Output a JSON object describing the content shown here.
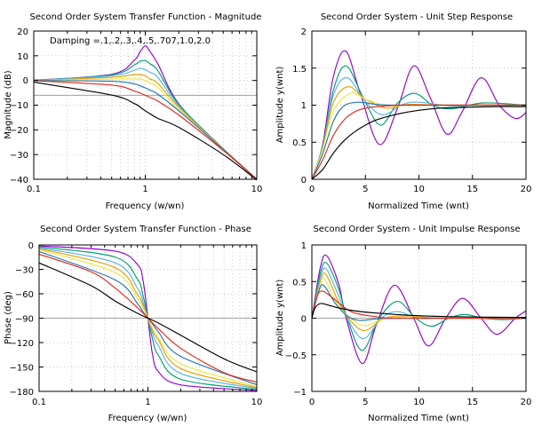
{
  "chart_data": [
    {
      "type": "line",
      "id": "magnitude",
      "title": "Second Order System Transfer Function - Magnitude",
      "xlabel": "Frequency (w/wn)",
      "ylabel": "Magnitude (dB)",
      "x_scale": "log",
      "xlim": [
        0.1,
        10
      ],
      "ylim": [
        -40,
        20
      ],
      "x_ticks": [
        0.1,
        1,
        10
      ],
      "x_tick_labels": [
        "0.1",
        "1",
        "10"
      ],
      "y_ticks": [
        20,
        10,
        0,
        -10,
        -20,
        -30,
        -40
      ],
      "y_tick_labels": [
        "20",
        "10",
        "0",
        "−10",
        "−20",
        "−30",
        "−40"
      ],
      "grid": true,
      "annotation": "Damping =.1,.2,.3,.4,.5,.707,1.0,2.0",
      "reference_line": {
        "y": -6
      },
      "series": [
        {
          "zeta": 0.1,
          "color": "#9400d3",
          "x": [
            0.1,
            0.5,
            0.8,
            0.9,
            1.0,
            1.1,
            1.3,
            2,
            5,
            10
          ],
          "y": [
            0.09,
            2.5,
            8.3,
            11.7,
            14.0,
            11.8,
            6.6,
            -9.5,
            -27.6,
            -39.9
          ]
        },
        {
          "zeta": 0.2,
          "color": "#009e73",
          "x": [
            0.1,
            0.5,
            0.8,
            0.9,
            1.0,
            1.1,
            1.3,
            2,
            5,
            10
          ],
          "y": [
            0.06,
            2.3,
            6.3,
            7.8,
            8.0,
            6.8,
            3.9,
            -9.7,
            -27.6,
            -39.9
          ]
        },
        {
          "zeta": 0.3,
          "color": "#56b4e9",
          "x": [
            0.1,
            0.5,
            0.8,
            0.9,
            1.0,
            1.1,
            1.3,
            2,
            5,
            10
          ],
          "y": [
            0.02,
            1.9,
            4.2,
            4.9,
            4.4,
            3.3,
            1.2,
            -10.3,
            -27.7,
            -39.9
          ]
        },
        {
          "zeta": 0.4,
          "color": "#e69f00",
          "x": [
            0.1,
            0.5,
            0.8,
            0.9,
            1.0,
            1.1,
            1.3,
            2,
            5,
            10
          ],
          "y": [
            -0.03,
            1.3,
            2.4,
            2.3,
            1.9,
            0.6,
            -1.2,
            -10.9,
            -27.7,
            -39.9
          ]
        },
        {
          "zeta": 0.5,
          "color": "#f0e442",
          "x": [
            0.1,
            0.5,
            0.8,
            0.9,
            1.0,
            1.1,
            1.3,
            2,
            5,
            10
          ],
          "y": [
            -0.04,
            0.6,
            0.6,
            0.6,
            0.0,
            -1.0,
            -2.9,
            -11.8,
            -27.8,
            -40.0
          ]
        },
        {
          "zeta": 0.707,
          "color": "#1f77b4",
          "x": [
            0.1,
            0.5,
            0.8,
            0.9,
            1.0,
            1.1,
            1.3,
            2,
            5,
            10
          ],
          "y": [
            0.0,
            -0.3,
            -1.4,
            -2.2,
            -3.0,
            -3.9,
            -5.6,
            -12.3,
            -27.9,
            -40.0
          ]
        },
        {
          "zeta": 1.0,
          "color": "#e3261b",
          "x": [
            0.1,
            0.5,
            0.8,
            0.9,
            1.0,
            1.1,
            1.3,
            2,
            5,
            10
          ],
          "y": [
            -0.09,
            -1.9,
            -4.3,
            -5.1,
            -6.0,
            -6.8,
            -8.4,
            -14.0,
            -28.3,
            -40.1
          ]
        },
        {
          "zeta": 2.0,
          "color": "#000000",
          "x": [
            0.1,
            0.5,
            0.8,
            0.9,
            1.0,
            1.1,
            1.3,
            2,
            5,
            10
          ],
          "y": [
            -0.7,
            -5.9,
            -9.4,
            -10.8,
            -12.3,
            -13.4,
            -15.4,
            -19.0,
            -30.0,
            -40.3
          ]
        }
      ]
    },
    {
      "type": "line",
      "id": "step",
      "title": "Second Order System - Unit Step Response",
      "xlabel": "Normalized Time (wnt)",
      "ylabel": "Amplitude y(wnt)",
      "xlim": [
        0,
        20
      ],
      "ylim": [
        0,
        2
      ],
      "x_ticks": [
        0,
        5,
        10,
        15,
        20
      ],
      "x_tick_labels": [
        "0",
        "5",
        "10",
        "15",
        "20"
      ],
      "y_ticks": [
        0,
        0.5,
        1,
        1.5,
        2
      ],
      "y_tick_labels": [
        "0",
        "0.5",
        "1",
        "1.5",
        "2"
      ],
      "grid": true,
      "series": [
        {
          "zeta": 0.1,
          "color": "#9400d3",
          "x": [
            0,
            1,
            2,
            3.16,
            4.5,
            6.3,
            8,
            9.5,
            11,
            12.6,
            14,
            15.8,
            17.5,
            19,
            20
          ],
          "y": [
            0,
            0.46,
            1.38,
            1.73,
            1.17,
            0.47,
            0.96,
            1.53,
            1.12,
            0.61,
            0.9,
            1.37,
            1.0,
            0.82,
            0.9
          ]
        },
        {
          "zeta": 0.2,
          "color": "#009e73",
          "x": [
            0,
            1,
            2,
            3.2,
            4.8,
            6.4,
            8,
            9.6,
            11.3,
            13,
            16,
            20
          ],
          "y": [
            0,
            0.44,
            1.2,
            1.53,
            1.1,
            0.73,
            1.03,
            1.16,
            1.0,
            0.95,
            1.03,
            1.0
          ]
        },
        {
          "zeta": 0.3,
          "color": "#56b4e9",
          "x": [
            0,
            1,
            2,
            3.3,
            5,
            6.6,
            8.5,
            10,
            13,
            16,
            20
          ],
          "y": [
            0,
            0.42,
            1.13,
            1.37,
            1.05,
            0.87,
            1.01,
            1.04,
            0.99,
            1.0,
            1.0
          ]
        },
        {
          "zeta": 0.4,
          "color": "#e69f00",
          "x": [
            0,
            1,
            2,
            3.4,
            5,
            7,
            9,
            12,
            16,
            20
          ],
          "y": [
            0,
            0.41,
            1.03,
            1.25,
            1.08,
            0.96,
            1.01,
            1.0,
            1.0,
            1.0
          ]
        },
        {
          "zeta": 0.5,
          "color": "#f0e442",
          "x": [
            0,
            1,
            2,
            3.6,
            5,
            7,
            9,
            12,
            16,
            20
          ],
          "y": [
            0,
            0.4,
            0.92,
            1.16,
            1.08,
            0.99,
            1.0,
            1.0,
            1.0,
            1.0
          ]
        },
        {
          "zeta": 0.707,
          "color": "#1f77b4",
          "x": [
            0,
            1,
            2,
            3,
            4.4,
            6,
            8,
            12,
            20
          ],
          "y": [
            0,
            0.34,
            0.78,
            0.99,
            1.04,
            1.01,
            1.0,
            1.0,
            1.0
          ]
        },
        {
          "zeta": 1.0,
          "color": "#e3261b",
          "x": [
            0,
            1,
            2,
            3,
            4,
            5,
            6,
            8,
            10,
            14,
            20
          ],
          "y": [
            0,
            0.26,
            0.59,
            0.8,
            0.91,
            0.96,
            0.98,
            1.0,
            1.0,
            1.0,
            1.0
          ]
        },
        {
          "zeta": 2.0,
          "color": "#000000",
          "x": [
            0,
            1,
            2,
            3,
            4,
            5,
            6,
            8,
            10,
            12,
            14,
            17,
            20
          ],
          "y": [
            0,
            0.13,
            0.35,
            0.52,
            0.64,
            0.73,
            0.8,
            0.88,
            0.93,
            0.96,
            0.97,
            0.98,
            0.98
          ]
        }
      ]
    },
    {
      "type": "line",
      "id": "phase",
      "title": "Second Order System Transfer Function - Phase",
      "xlabel": "Frequency (w/wn)",
      "ylabel": "Phase (deg)",
      "x_scale": "log",
      "xlim": [
        0.1,
        10
      ],
      "ylim": [
        -180,
        0
      ],
      "x_ticks": [
        0.1,
        1,
        10
      ],
      "x_tick_labels": [
        "0.1",
        "1",
        "10"
      ],
      "y_ticks": [
        0,
        -30,
        -60,
        -90,
        -120,
        -150,
        -180
      ],
      "y_tick_labels": [
        "0",
        "−30",
        "−60",
        "−90",
        "−120",
        "−150",
        "−180"
      ],
      "grid": true,
      "reference_line": {
        "y": -90
      },
      "series": [
        {
          "zeta": 0.1,
          "color": "#9400d3",
          "x": [
            0.1,
            0.5,
            0.8,
            0.9,
            1.0,
            1.1,
            1.25,
            2,
            10
          ],
          "y": [
            -1.2,
            -7.6,
            -24,
            -43,
            -90,
            -134,
            -156,
            -172,
            -178.8
          ]
        },
        {
          "zeta": 0.2,
          "color": "#009e73",
          "x": [
            0.1,
            0.5,
            0.8,
            0.9,
            1.0,
            1.1,
            1.25,
            2,
            10
          ],
          "y": [
            -2.3,
            -15,
            -42,
            -62,
            -90,
            -115,
            -136,
            -165,
            -177.7
          ]
        },
        {
          "zeta": 0.3,
          "color": "#56b4e9",
          "x": [
            0.1,
            0.5,
            0.8,
            0.9,
            1.0,
            1.1,
            1.25,
            2,
            10
          ],
          "y": [
            -3.5,
            -22,
            -53,
            -70,
            -90,
            -108,
            -124,
            -158,
            -176.5
          ]
        },
        {
          "zeta": 0.4,
          "color": "#e69f00",
          "x": [
            0.1,
            0.5,
            0.8,
            0.9,
            1.0,
            1.1,
            1.25,
            2,
            10
          ],
          "y": [
            -4.6,
            -28,
            -61,
            -74,
            -90,
            -105,
            -117,
            -152,
            -175.4
          ]
        },
        {
          "zeta": 0.5,
          "color": "#f0e442",
          "x": [
            0.1,
            0.5,
            0.8,
            0.9,
            1.0,
            1.1,
            1.25,
            2,
            10
          ],
          "y": [
            -5.8,
            -34,
            -66,
            -77,
            -90,
            -102,
            -114,
            -146,
            -174.2
          ]
        },
        {
          "zeta": 0.707,
          "color": "#1f77b4",
          "x": [
            0.1,
            0.5,
            0.8,
            0.9,
            1.0,
            1.1,
            1.25,
            2,
            10
          ],
          "y": [
            -8.1,
            -43,
            -72,
            -82,
            -90,
            -97,
            -107,
            -137,
            -171.8
          ]
        },
        {
          "zeta": 1.0,
          "color": "#e3261b",
          "x": [
            0.1,
            0.3,
            0.5,
            0.8,
            1.0,
            1.25,
            2,
            5,
            10
          ],
          "y": [
            -11.4,
            -33,
            -53,
            -77,
            -90,
            -103,
            -127,
            -157,
            -168.6
          ]
        },
        {
          "zeta": 2.0,
          "color": "#000000",
          "x": [
            0.1,
            0.3,
            0.5,
            0.8,
            1.0,
            1.25,
            2,
            5,
            10
          ],
          "y": [
            -22,
            -50,
            -69,
            -84,
            -90,
            -96,
            -111,
            -140,
            -156
          ]
        }
      ]
    },
    {
      "type": "line",
      "id": "impulse",
      "title": "Second Order System - Unit Impulse Response",
      "xlabel": "Normalized Time (wnt)",
      "ylabel": "Amplitude y(wnt)",
      "xlim": [
        0,
        20
      ],
      "ylim": [
        -1,
        1
      ],
      "x_ticks": [
        0,
        5,
        10,
        15,
        20
      ],
      "x_tick_labels": [
        "0",
        "5",
        "10",
        "15",
        "20"
      ],
      "y_ticks": [
        1,
        0.5,
        0,
        -0.5,
        -1
      ],
      "y_tick_labels": [
        "1",
        "0.5",
        "0",
        "−0.5",
        "−1"
      ],
      "grid": true,
      "reference_line": {
        "y": 0
      },
      "series": [
        {
          "zeta": 0.1,
          "color": "#9400d3",
          "x": [
            0,
            0.8,
            1.4,
            2.5,
            3.2,
            4.7,
            6,
            7.7,
            9.5,
            10.9,
            12.5,
            14.1,
            15.8,
            17.3,
            19,
            20
          ],
          "y": [
            0,
            0.7,
            0.85,
            0.47,
            0.0,
            -0.62,
            -0.1,
            0.45,
            0.0,
            -0.38,
            0.0,
            0.27,
            0.0,
            -0.22,
            0.0,
            0.1
          ]
        },
        {
          "zeta": 0.2,
          "color": "#009e73",
          "x": [
            0,
            0.8,
            1.4,
            2.5,
            3.3,
            4.7,
            6.3,
            8,
            9.7,
            11.2,
            12.8,
            14.3,
            16,
            18,
            20
          ],
          "y": [
            0,
            0.62,
            0.75,
            0.4,
            0.0,
            -0.44,
            0.0,
            0.23,
            0.0,
            -0.11,
            0.0,
            0.05,
            0.0,
            -0.02,
            0.0
          ]
        },
        {
          "zeta": 0.3,
          "color": "#56b4e9",
          "x": [
            0,
            0.8,
            1.35,
            2.5,
            3.3,
            4.8,
            6.5,
            8,
            10,
            13,
            20
          ],
          "y": [
            0,
            0.56,
            0.67,
            0.3,
            0.0,
            -0.28,
            0.0,
            0.09,
            0.0,
            0.0,
            0.0
          ]
        },
        {
          "zeta": 0.4,
          "color": "#e69f00",
          "x": [
            0,
            0.8,
            1.3,
            2.5,
            3.4,
            4.9,
            6.8,
            9,
            12,
            20
          ],
          "y": [
            0,
            0.5,
            0.6,
            0.22,
            0.0,
            -0.17,
            0.0,
            0.03,
            0.0,
            0.0
          ]
        },
        {
          "zeta": 0.5,
          "color": "#f0e442",
          "x": [
            0,
            0.8,
            1.2,
            2.5,
            3.6,
            5,
            7,
            10,
            20
          ],
          "y": [
            0,
            0.47,
            0.53,
            0.17,
            0.0,
            -0.1,
            0.0,
            0.0,
            0.0
          ]
        },
        {
          "zeta": 0.707,
          "color": "#1f77b4",
          "x": [
            0,
            0.6,
            1.1,
            2.2,
            3.3,
            4.4,
            6,
            8,
            20
          ],
          "y": [
            0,
            0.35,
            0.45,
            0.2,
            0.03,
            -0.03,
            -0.01,
            0.0,
            0.0
          ]
        },
        {
          "zeta": 1.0,
          "color": "#e3261b",
          "x": [
            0,
            0.5,
            1.0,
            2.0,
            3.0,
            4.0,
            6.0,
            8.0,
            20
          ],
          "y": [
            0,
            0.3,
            0.37,
            0.27,
            0.15,
            0.07,
            0.02,
            0.0,
            0.0
          ]
        },
        {
          "zeta": 2.0,
          "color": "#000000",
          "x": [
            0,
            0.3,
            0.8,
            1.5,
            2.5,
            4,
            6,
            9,
            13,
            20
          ],
          "y": [
            0,
            0.14,
            0.2,
            0.18,
            0.14,
            0.1,
            0.07,
            0.04,
            0.02,
            0.01
          ]
        }
      ]
    }
  ]
}
